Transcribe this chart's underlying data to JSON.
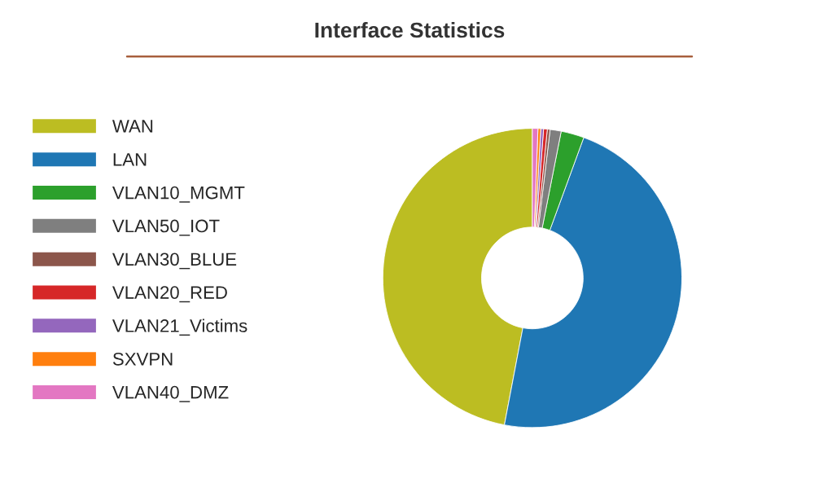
{
  "chart_data": {
    "type": "donut",
    "title": "Interface Statistics",
    "categories": [
      "WAN",
      "LAN",
      "VLAN10_MGMT",
      "VLAN50_IOT",
      "VLAN30_BLUE",
      "VLAN20_RED",
      "VLAN21_Victims",
      "SXVPN",
      "VLAN40_DMZ"
    ],
    "values": [
      47.1,
      47.5,
      2.5,
      1.2,
      0.3,
      0.4,
      0.3,
      0.3,
      0.6
    ],
    "colors": [
      "#bcbd22",
      "#1f77b4",
      "#2ca02c",
      "#7f7f7f",
      "#8c564b",
      "#d62728",
      "#9467bd",
      "#ff7f0e",
      "#e377c2"
    ],
    "legend": "left"
  }
}
